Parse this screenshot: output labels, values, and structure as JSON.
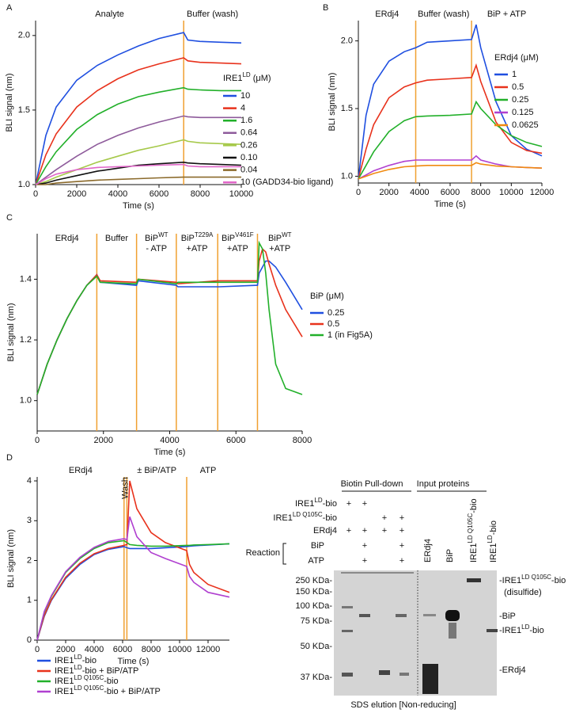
{
  "chart_data": [
    {
      "panel": "A",
      "type": "line",
      "xlabel": "Time (s)",
      "ylabel": "BLI signal (nm)",
      "xlim": [
        0,
        10000
      ],
      "ylim": [
        1,
        2.1
      ],
      "xticks": [
        0,
        2000,
        4000,
        6000,
        8000,
        10000
      ],
      "yticks": [
        {
          "value": 1,
          "label": "1.0"
        },
        1.5,
        {
          "value": 2,
          "label": "2.0"
        }
      ],
      "phase_lines": [
        7200
      ],
      "phase_line_color": "#f0a030",
      "phase_labels": [
        [
          [
            "Analyte"
          ]
        ],
        [
          [
            "Buffer (wash)"
          ]
        ]
      ],
      "legend_title": [
        "IRE1",
        "LD",
        " (μM)"
      ],
      "x": [
        0,
        500,
        1000,
        2000,
        3000,
        4000,
        5000,
        6000,
        7200,
        7400,
        8000,
        9000,
        10000
      ],
      "series": [
        {
          "name": "10",
          "color": "#1f4fe0",
          "values": [
            1.0,
            1.33,
            1.52,
            1.7,
            1.8,
            1.87,
            1.93,
            1.98,
            2.02,
            1.97,
            1.96,
            1.955,
            1.95
          ]
        },
        {
          "name": "4",
          "color": "#e8321c",
          "values": [
            1.0,
            1.2,
            1.34,
            1.52,
            1.63,
            1.71,
            1.77,
            1.81,
            1.85,
            1.83,
            1.82,
            1.815,
            1.81
          ]
        },
        {
          "name": "1.6",
          "color": "#22b02a",
          "values": [
            1.0,
            1.12,
            1.22,
            1.37,
            1.47,
            1.54,
            1.59,
            1.62,
            1.65,
            1.64,
            1.635,
            1.63,
            1.63
          ]
        },
        {
          "name": "0.64",
          "color": "#8e5b9b",
          "values": [
            1.0,
            1.05,
            1.1,
            1.19,
            1.27,
            1.33,
            1.38,
            1.42,
            1.46,
            1.455,
            1.45,
            1.45,
            1.45
          ]
        },
        {
          "name": "0.26",
          "color": "#a6c94a",
          "values": [
            1.0,
            1.02,
            1.05,
            1.1,
            1.15,
            1.19,
            1.23,
            1.26,
            1.3,
            1.29,
            1.28,
            1.275,
            1.27
          ]
        },
        {
          "name": "0.10",
          "color": "#111111",
          "values": [
            1.0,
            1.01,
            1.03,
            1.06,
            1.09,
            1.11,
            1.13,
            1.14,
            1.15,
            1.145,
            1.14,
            1.135,
            1.13
          ]
        },
        {
          "name": "0.04",
          "color": "#8b6a2b",
          "values": [
            1.0,
            1.0,
            1.01,
            1.02,
            1.03,
            1.035,
            1.04,
            1.045,
            1.05,
            1.05,
            1.05,
            1.05,
            1.05
          ]
        },
        {
          "name": "10 (GADD34-bio ligand)",
          "color": "#e066c8",
          "values": [
            1.0,
            1.04,
            1.07,
            1.1,
            1.115,
            1.12,
            1.125,
            1.13,
            1.135,
            1.125,
            1.12,
            1.12,
            1.12
          ]
        }
      ]
    },
    {
      "panel": "B",
      "type": "line",
      "xlabel": "Time (s)",
      "ylabel": "BLI signal (nm)",
      "xlim": [
        0,
        12000
      ],
      "ylim": [
        0.95,
        2.15
      ],
      "xticks": [
        0,
        2000,
        4000,
        6000,
        8000,
        10000,
        12000
      ],
      "yticks": [
        {
          "value": 1,
          "label": "1.0"
        },
        1.5,
        {
          "value": 2,
          "label": "2.0"
        }
      ],
      "phase_lines": [
        3750,
        7400
      ],
      "phase_line_color": "#f0a030",
      "phase_labels": [
        [
          [
            "ERdj4"
          ]
        ],
        [
          [
            "Buffer (wash)"
          ]
        ],
        [
          [
            "BiP + ATP"
          ]
        ]
      ],
      "legend_title": [
        "ERdj4 (μM)"
      ],
      "x": [
        0,
        500,
        1000,
        2000,
        3000,
        3750,
        4500,
        6000,
        7400,
        7700,
        8000,
        9000,
        10000,
        11000,
        12000
      ],
      "series": [
        {
          "name": "1",
          "color": "#1f4fe0",
          "values": [
            0.98,
            1.45,
            1.68,
            1.85,
            1.92,
            1.95,
            1.99,
            2.0,
            2.01,
            2.12,
            1.95,
            1.55,
            1.3,
            1.2,
            1.15
          ]
        },
        {
          "name": "0.5",
          "color": "#e8321c",
          "values": [
            0.98,
            1.2,
            1.38,
            1.58,
            1.66,
            1.69,
            1.71,
            1.72,
            1.73,
            1.82,
            1.7,
            1.4,
            1.25,
            1.19,
            1.17
          ]
        },
        {
          "name": "0.25",
          "color": "#22b02a",
          "values": [
            0.98,
            1.08,
            1.18,
            1.33,
            1.41,
            1.44,
            1.445,
            1.45,
            1.46,
            1.55,
            1.5,
            1.38,
            1.3,
            1.25,
            1.22
          ]
        },
        {
          "name": "0.125",
          "color": "#b040d0",
          "values": [
            0.98,
            1.01,
            1.04,
            1.08,
            1.11,
            1.12,
            1.12,
            1.12,
            1.12,
            1.15,
            1.12,
            1.09,
            1.07,
            1.065,
            1.06
          ]
        },
        {
          "name": "0.0625",
          "color": "#f08a10",
          "values": [
            0.98,
            1.0,
            1.02,
            1.05,
            1.07,
            1.075,
            1.08,
            1.08,
            1.08,
            1.1,
            1.09,
            1.075,
            1.07,
            1.065,
            1.06
          ]
        }
      ]
    },
    {
      "panel": "C",
      "type": "line",
      "xlabel": "Time (s)",
      "ylabel": "BLI signal (nm)",
      "xlim": [
        0,
        8000
      ],
      "ylim": [
        0.9,
        1.55
      ],
      "xticks": [
        0,
        2000,
        4000,
        6000,
        8000
      ],
      "yticks": [
        {
          "value": 1,
          "label": "1.0"
        },
        {
          "value": 1.2,
          "label": "1.2"
        },
        {
          "value": 1.4,
          "label": "1.4"
        }
      ],
      "phase_lines": [
        1800,
        3000,
        4200,
        5450,
        6650
      ],
      "phase_line_color": "#f0a030",
      "phase_labels": [
        [
          [
            "ERdj4"
          ]
        ],
        [
          [
            "Buffer"
          ]
        ],
        [
          [
            "BiP",
            "WT"
          ],
          [
            "- ATP"
          ]
        ],
        [
          [
            "BiP",
            "T229A"
          ],
          [
            "+ATP"
          ]
        ],
        [
          [
            "BiP",
            "V461F"
          ],
          [
            "+ATP"
          ]
        ],
        [
          [
            "BiP",
            "WT"
          ],
          [
            "+ATP"
          ]
        ]
      ],
      "legend_title": [
        "BiP (μM)"
      ],
      "x": [
        0,
        300,
        600,
        900,
        1200,
        1500,
        1800,
        1900,
        3000,
        3050,
        4200,
        4250,
        5450,
        5500,
        6650,
        6700,
        6800,
        6900,
        7000,
        7200,
        7500,
        8000
      ],
      "series": [
        {
          "name": "0.25",
          "color": "#1f4fe0",
          "values": [
            1.02,
            1.12,
            1.2,
            1.27,
            1.33,
            1.38,
            1.415,
            1.39,
            1.38,
            1.395,
            1.38,
            1.375,
            1.375,
            1.375,
            1.38,
            1.42,
            1.44,
            1.46,
            1.46,
            1.44,
            1.39,
            1.3
          ]
        },
        {
          "name": "0.5",
          "color": "#e8321c",
          "values": [
            1.02,
            1.12,
            1.2,
            1.27,
            1.33,
            1.38,
            1.415,
            1.395,
            1.39,
            1.4,
            1.39,
            1.385,
            1.395,
            1.395,
            1.395,
            1.46,
            1.5,
            1.49,
            1.45,
            1.38,
            1.3,
            1.21
          ]
        },
        {
          "name": "1 (in Fig5A)",
          "color": "#22b02a",
          "values": [
            1.02,
            1.12,
            1.2,
            1.27,
            1.33,
            1.38,
            1.41,
            1.39,
            1.385,
            1.4,
            1.385,
            1.39,
            1.39,
            1.39,
            1.39,
            1.52,
            1.5,
            1.42,
            1.3,
            1.12,
            1.04,
            1.02
          ]
        }
      ]
    },
    {
      "panel": "D",
      "type": "line",
      "xlabel": "Time (s)",
      "ylabel": "BLI signal (nm)",
      "xlim": [
        0,
        13500
      ],
      "ylim": [
        0,
        4.1
      ],
      "xticks": [
        0,
        2000,
        4000,
        6000,
        8000,
        10000,
        12000
      ],
      "yticks": [
        0,
        1,
        2,
        3,
        4
      ],
      "phase_lines": [
        6100,
        6300,
        10500
      ],
      "phase_line_color": "#f0a030",
      "phase_labels": [
        [
          [
            "ERdj4"
          ]
        ],
        [
          [
            "Wash"
          ]
        ],
        [
          [
            "± BiP/ATP"
          ]
        ],
        [
          [
            "ATP"
          ]
        ]
      ],
      "x": [
        0,
        500,
        1000,
        2000,
        3000,
        4000,
        5000,
        6100,
        6300,
        6500,
        7000,
        8000,
        9000,
        10500,
        10700,
        11000,
        12000,
        13500
      ],
      "series": [
        {
          "name": [
            "IRE1",
            "LD",
            "-bio"
          ],
          "color": "#1f4fe0",
          "values": [
            0,
            0.6,
            1.0,
            1.55,
            1.9,
            2.15,
            2.28,
            2.35,
            2.32,
            2.3,
            2.3,
            2.3,
            2.32,
            2.35,
            2.36,
            2.37,
            2.39,
            2.42
          ]
        },
        {
          "name": [
            "IRE1",
            "LD",
            "-bio + BiP/ATP"
          ],
          "color": "#e8321c",
          "values": [
            0,
            0.62,
            1.02,
            1.58,
            1.93,
            2.17,
            2.3,
            2.38,
            2.4,
            4.0,
            3.3,
            2.7,
            2.45,
            2.25,
            1.9,
            1.7,
            1.4,
            1.2
          ]
        },
        {
          "name": [
            "IRE1",
            "LD Q105C",
            "-bio"
          ],
          "color": "#22b02a",
          "values": [
            0,
            0.7,
            1.1,
            1.7,
            2.05,
            2.3,
            2.45,
            2.5,
            2.45,
            2.4,
            2.38,
            2.36,
            2.36,
            2.38,
            2.38,
            2.39,
            2.4,
            2.42
          ]
        },
        {
          "name": [
            "IRE1",
            "LD Q105C",
            "-bio + BiP/ATP"
          ],
          "color": "#b040d0",
          "values": [
            0,
            0.72,
            1.12,
            1.72,
            2.08,
            2.33,
            2.48,
            2.55,
            2.52,
            3.1,
            2.6,
            2.2,
            2.05,
            1.85,
            1.6,
            1.45,
            1.2,
            1.08
          ]
        }
      ]
    }
  ],
  "gel": {
    "headers": [
      "Biotin Pull-down",
      "Input proteins"
    ],
    "rows": [
      {
        "label": [
          "IRE1",
          "LD",
          "-bio"
        ],
        "marks": [
          "+",
          "+",
          null,
          null
        ]
      },
      {
        "label": [
          "IRE1",
          "LD Q105C",
          "-bio"
        ],
        "marks": [
          null,
          null,
          "+",
          "+"
        ]
      },
      {
        "label": [
          "ERdj4"
        ],
        "marks": [
          "+",
          "+",
          "+",
          "+"
        ]
      },
      {
        "label": [
          "BiP"
        ],
        "marks": [
          null,
          "+",
          null,
          "+"
        ]
      },
      {
        "label": [
          "ATP"
        ],
        "marks": [
          null,
          "+",
          null,
          "+"
        ]
      }
    ],
    "reaction": "Reaction",
    "lanes": [
      [
        "ERdj4"
      ],
      [
        "BiP"
      ],
      [
        "IRE1",
        "LD Q105C",
        "-bio"
      ],
      [
        "IRE1",
        "LD",
        "-bio"
      ]
    ],
    "markers": [
      "250 KDa-",
      "150 KDa-",
      "100 KDa-",
      "75 KDa-",
      "50 KDa-",
      "37 KDa-"
    ],
    "bands": [
      [
        "-IRE1",
        "LD Q105C",
        "-bio"
      ],
      [
        "(disulfide)"
      ],
      [
        "-BiP"
      ],
      [
        "-IRE1",
        "LD",
        "-bio"
      ],
      [
        "-ERdj4"
      ]
    ],
    "caption": "SDS elution [Non-reducing]"
  }
}
